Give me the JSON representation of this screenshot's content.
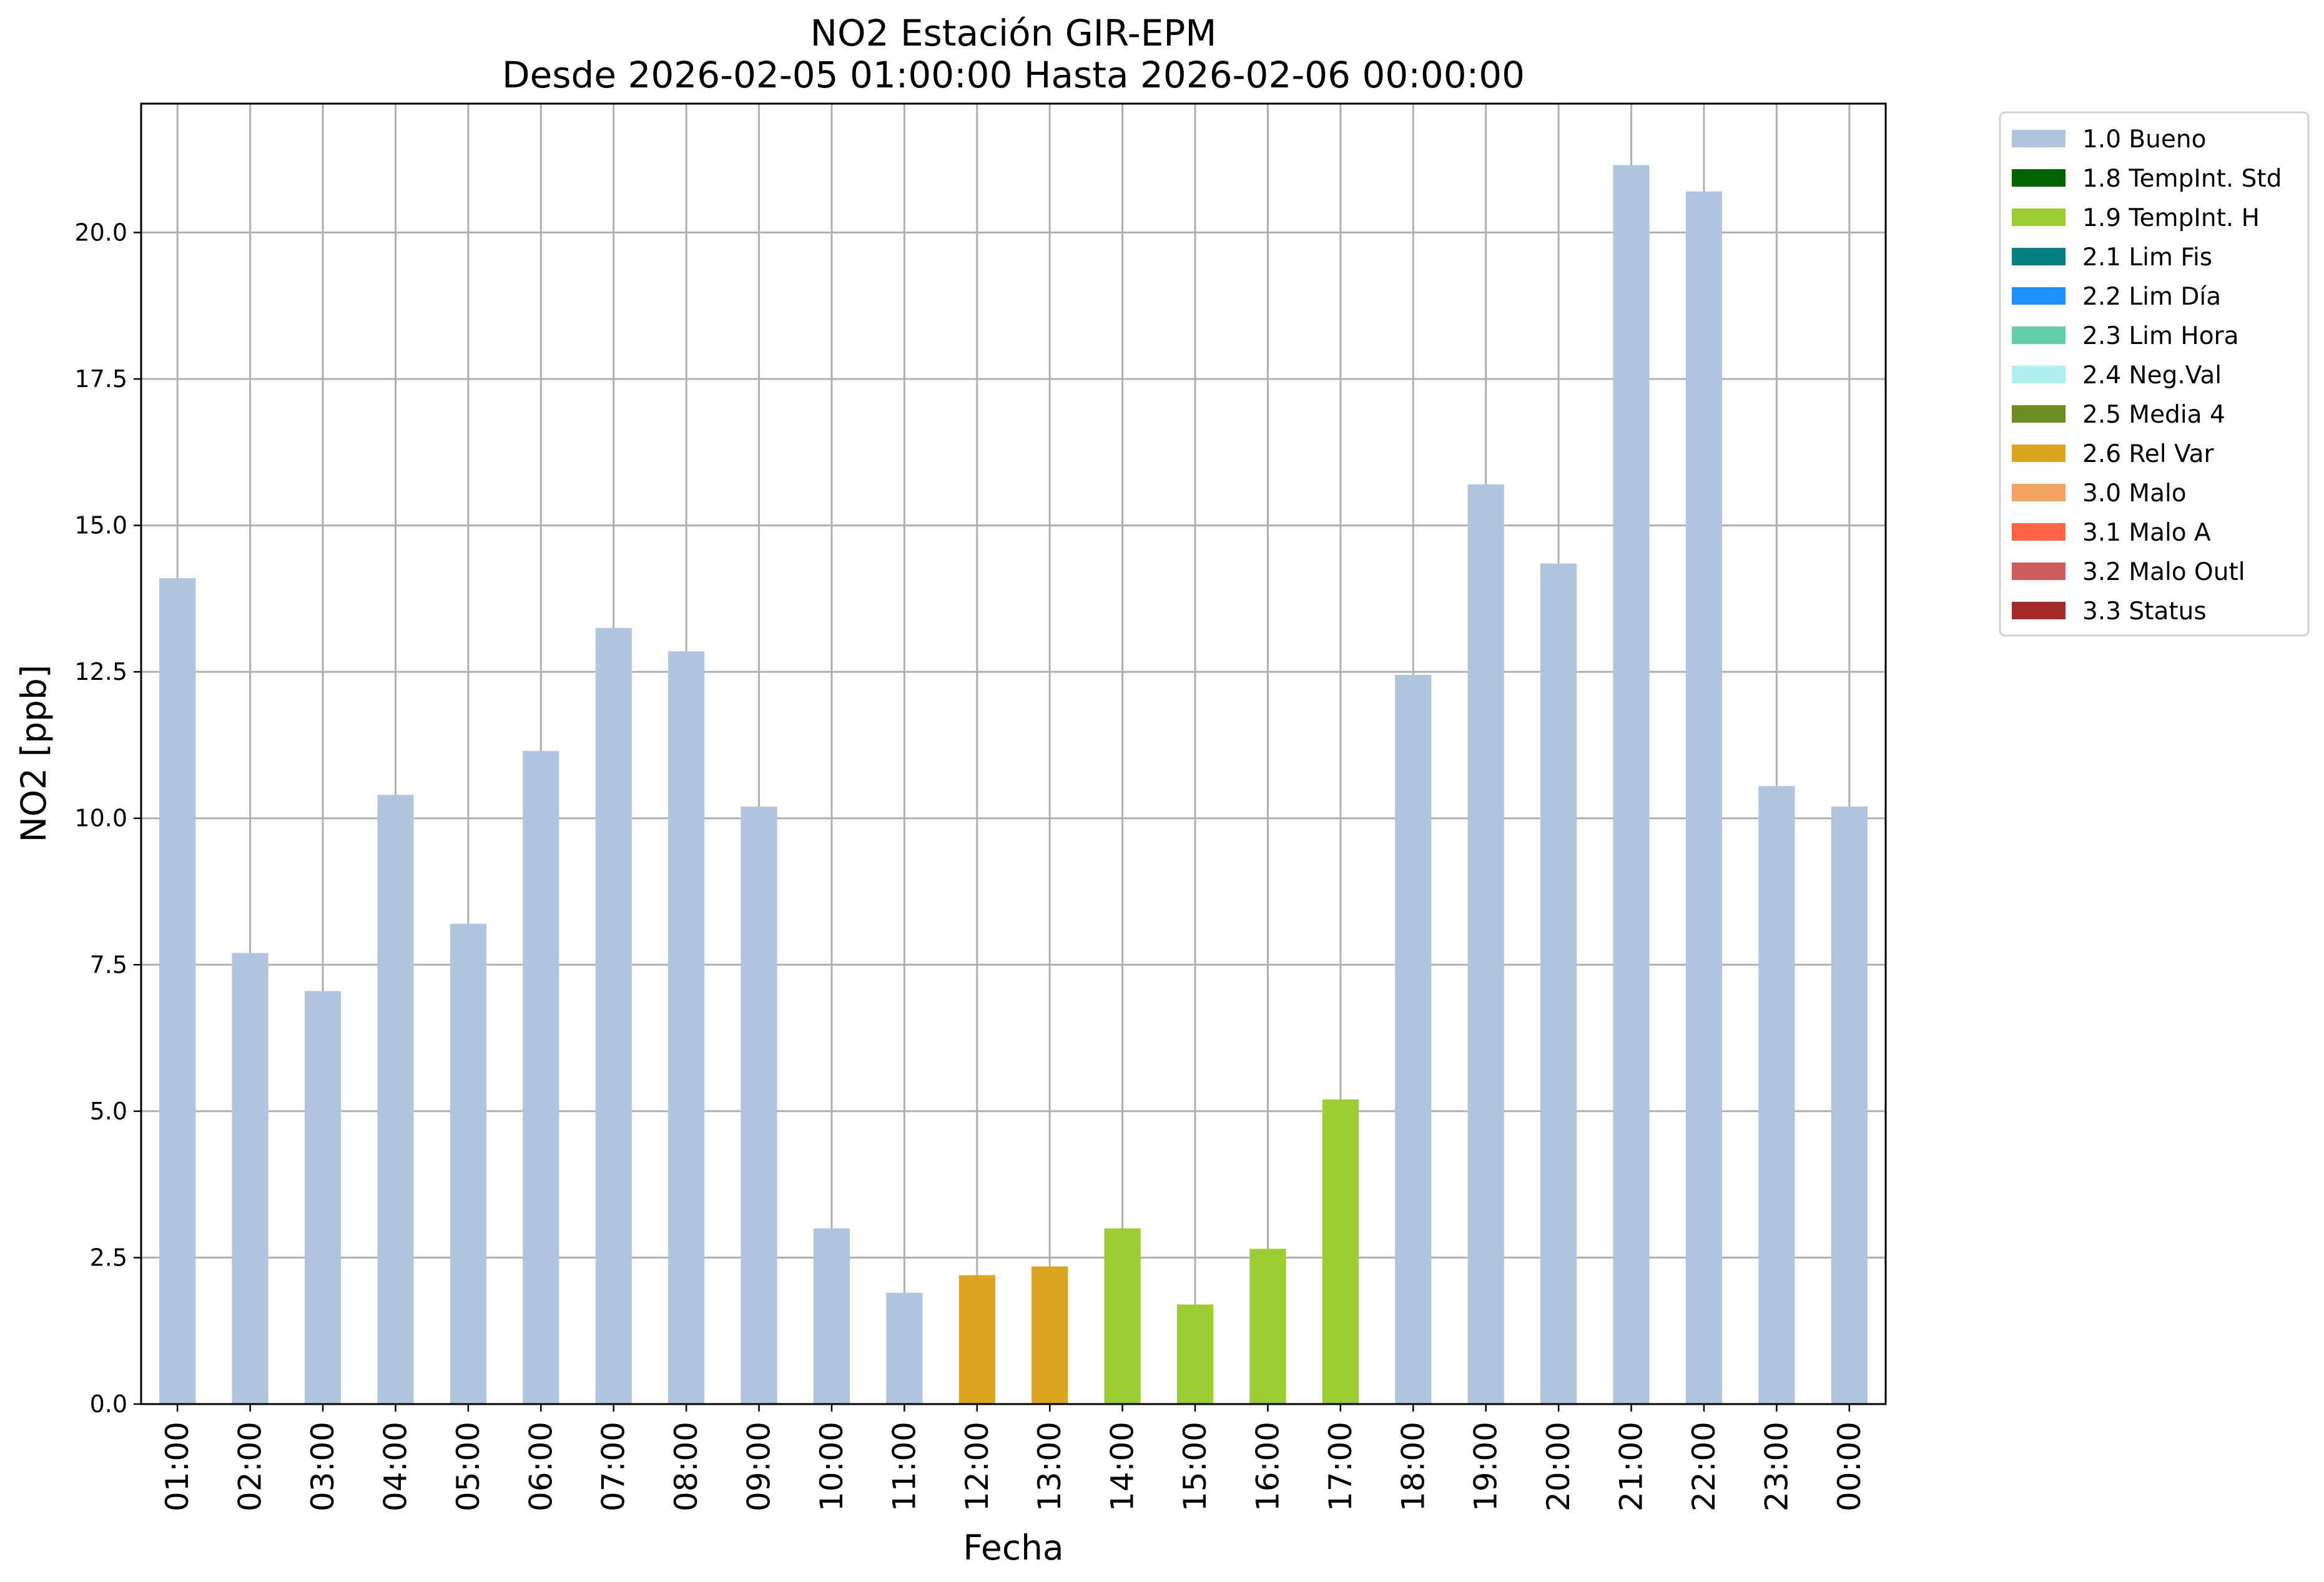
{
  "chart_data": {
    "type": "bar",
    "title": "NO2 Estación GIR-EPM",
    "subtitle": "Desde 2026-02-05 01:00:00 Hasta 2026-02-06 00:00:00",
    "xlabel": "Fecha",
    "ylabel": "NO2 [ppb]",
    "ylim": [
      0,
      22.2
    ],
    "yticks": [
      "0.0",
      "2.5",
      "5.0",
      "7.5",
      "10.0",
      "12.5",
      "15.0",
      "17.5",
      "20.0"
    ],
    "grid": true,
    "legend_position": "outside-top-right",
    "categories": [
      "01:00",
      "02:00",
      "03:00",
      "04:00",
      "05:00",
      "06:00",
      "07:00",
      "08:00",
      "09:00",
      "10:00",
      "11:00",
      "12:00",
      "13:00",
      "14:00",
      "15:00",
      "16:00",
      "17:00",
      "18:00",
      "19:00",
      "20:00",
      "21:00",
      "22:00",
      "23:00",
      "00:00"
    ],
    "values": [
      14.1,
      7.7,
      7.05,
      10.4,
      8.2,
      11.15,
      13.25,
      12.85,
      10.2,
      3.0,
      1.9,
      2.2,
      2.35,
      3.0,
      1.7,
      2.65,
      5.2,
      12.45,
      15.7,
      14.35,
      21.15,
      20.7,
      10.55,
      10.2
    ],
    "flags": [
      "1.0 Bueno",
      "1.0 Bueno",
      "1.0 Bueno",
      "1.0 Bueno",
      "1.0 Bueno",
      "1.0 Bueno",
      "1.0 Bueno",
      "1.0 Bueno",
      "1.0 Bueno",
      "1.0 Bueno",
      "1.0 Bueno",
      "2.6 Rel Var",
      "2.6 Rel Var",
      "1.9 TempInt. H",
      "1.9 TempInt. H",
      "1.9 TempInt. H",
      "1.9 TempInt. H",
      "1.0 Bueno",
      "1.0 Bueno",
      "1.0 Bueno",
      "1.0 Bueno",
      "1.0 Bueno",
      "1.0 Bueno",
      "1.0 Bueno"
    ],
    "legend": [
      {
        "label": "1.0 Bueno",
        "color": "#b0c4de"
      },
      {
        "label": "1.8 TempInt. Std",
        "color": "#006400"
      },
      {
        "label": "1.9 TempInt. H",
        "color": "#9acd32"
      },
      {
        "label": "2.1 Lim Fis",
        "color": "#008080"
      },
      {
        "label": "2.2 Lim Día",
        "color": "#1e90ff"
      },
      {
        "label": "2.3 Lim Hora",
        "color": "#66cdaa"
      },
      {
        "label": "2.4 Neg.Val",
        "color": "#afeeee"
      },
      {
        "label": "2.5 Media 4",
        "color": "#6b8e23"
      },
      {
        "label": "2.6 Rel Var",
        "color": "#daa520"
      },
      {
        "label": "3.0 Malo",
        "color": "#f4a460"
      },
      {
        "label": "3.1 Malo A",
        "color": "#ff6347"
      },
      {
        "label": "3.2 Malo Outl",
        "color": "#cd5c5c"
      },
      {
        "label": "3.3 Status",
        "color": "#a52a2a"
      }
    ]
  }
}
